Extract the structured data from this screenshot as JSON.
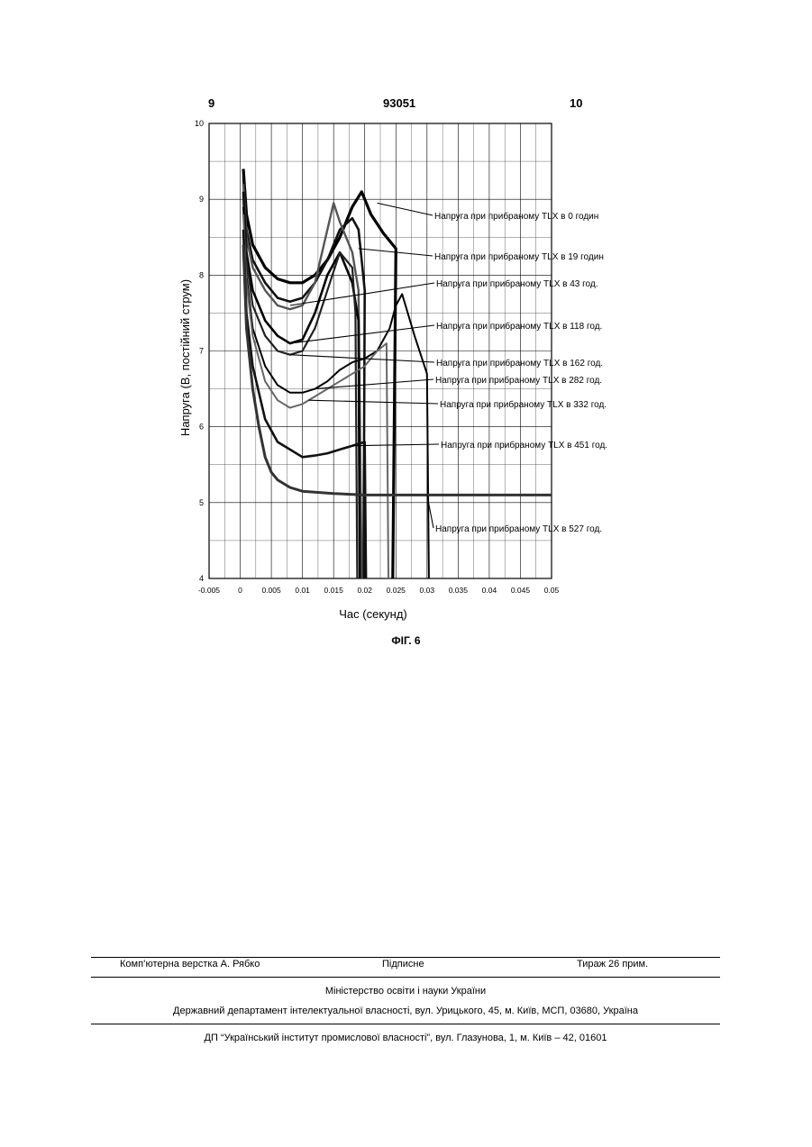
{
  "header": {
    "left_page": "9",
    "patent_number": "93051",
    "right_page": "10"
  },
  "figure_caption": "ФІГ. 6",
  "chart_data": {
    "type": "line",
    "title": "",
    "xlabel": "Час (секунд)",
    "ylabel": "Напруга (В, постійний струм)",
    "xlim": [
      -0.005,
      0.05
    ],
    "ylim": [
      4,
      10
    ],
    "xticks": [
      "-0.005",
      "0",
      "0.005",
      "0.01",
      "0.015",
      "0.02",
      "0.025",
      "0.03",
      "0.035",
      "0.04",
      "0.045",
      "0.05"
    ],
    "yticks": [
      "4",
      "5",
      "6",
      "7",
      "8",
      "9",
      "10"
    ],
    "grid": true,
    "legend": "annotations to the right with leader lines",
    "series": [
      {
        "name": "Напруга при прибраному TLX в 0 годин",
        "x": [
          0.0005,
          0.001,
          0.002,
          0.004,
          0.006,
          0.008,
          0.01,
          0.012,
          0.014,
          0.016,
          0.018,
          0.0195,
          0.021,
          0.023,
          0.025,
          0.0245
        ],
        "y": [
          9.4,
          8.8,
          8.4,
          8.1,
          7.95,
          7.9,
          7.9,
          8.0,
          8.2,
          8.5,
          8.9,
          9.1,
          8.8,
          8.55,
          8.35,
          4.0
        ]
      },
      {
        "name": "Напруга при прибраному TLX в 19 годин",
        "x": [
          0.0005,
          0.001,
          0.002,
          0.004,
          0.006,
          0.008,
          0.01,
          0.012,
          0.014,
          0.016,
          0.018,
          0.019,
          0.0195,
          0.02,
          0.0198
        ],
        "y": [
          9.3,
          8.6,
          8.2,
          7.9,
          7.7,
          7.65,
          7.7,
          7.9,
          8.2,
          8.6,
          8.75,
          8.6,
          8.2,
          7.8,
          4.0
        ]
      },
      {
        "name": "Напруга при прибраному TLX в 43 год.",
        "x": [
          0.0005,
          0.001,
          0.002,
          0.004,
          0.006,
          0.008,
          0.01,
          0.012,
          0.014,
          0.015,
          0.016,
          0.018,
          0.019,
          0.0195
        ],
        "y": [
          9.2,
          8.5,
          8.1,
          7.8,
          7.6,
          7.55,
          7.6,
          7.9,
          8.6,
          8.95,
          8.7,
          8.3,
          7.8,
          4.0
        ]
      },
      {
        "name": "Напруга при прибраному TLX в 118 год.",
        "x": [
          0.0005,
          0.001,
          0.002,
          0.004,
          0.006,
          0.008,
          0.01,
          0.012,
          0.014,
          0.016,
          0.018,
          0.019,
          0.0192
        ],
        "y": [
          9.1,
          8.3,
          7.8,
          7.4,
          7.2,
          7.1,
          7.15,
          7.5,
          8.0,
          8.3,
          7.9,
          7.4,
          4.0
        ]
      },
      {
        "name": "Напруга при прибраному TLX в 162 год.",
        "x": [
          0.0005,
          0.001,
          0.002,
          0.004,
          0.006,
          0.008,
          0.01,
          0.012,
          0.014,
          0.016,
          0.018,
          0.0185,
          0.0188
        ],
        "y": [
          9.0,
          8.2,
          7.6,
          7.2,
          7.0,
          6.95,
          7.0,
          7.3,
          7.8,
          8.3,
          8.1,
          7.5,
          4.0
        ]
      },
      {
        "name": "Напруга при прибраному TLX в 282 год.",
        "x": [
          0.0005,
          0.001,
          0.002,
          0.004,
          0.006,
          0.008,
          0.01,
          0.012,
          0.014,
          0.016,
          0.018,
          0.02,
          0.022,
          0.024,
          0.025,
          0.026,
          0.028,
          0.03,
          0.0303
        ],
        "y": [
          8.9,
          8.0,
          7.3,
          6.8,
          6.55,
          6.45,
          6.45,
          6.5,
          6.6,
          6.75,
          6.85,
          6.9,
          7.0,
          7.3,
          7.6,
          7.75,
          7.2,
          6.7,
          4.0
        ]
      },
      {
        "name": "Напруга при прибраному TLX в 332 год.",
        "x": [
          0.0005,
          0.001,
          0.002,
          0.004,
          0.006,
          0.008,
          0.01,
          0.012,
          0.014,
          0.016,
          0.018,
          0.02,
          0.022,
          0.0235,
          0.0238
        ],
        "y": [
          8.8,
          7.9,
          7.2,
          6.6,
          6.35,
          6.25,
          6.3,
          6.4,
          6.5,
          6.6,
          6.7,
          6.8,
          7.0,
          7.1,
          4.0
        ]
      },
      {
        "name": "Напруга при прибраному TLX в 451 год.",
        "x": [
          0.0005,
          0.001,
          0.002,
          0.004,
          0.006,
          0.008,
          0.01,
          0.012,
          0.014,
          0.016,
          0.018,
          0.02,
          0.0202
        ],
        "y": [
          8.6,
          7.5,
          6.8,
          6.1,
          5.8,
          5.7,
          5.6,
          5.62,
          5.65,
          5.7,
          5.75,
          5.8,
          4.0
        ]
      },
      {
        "name": "Напруга при прибраному TLX в 527 год.",
        "x": [
          0.0005,
          0.001,
          0.002,
          0.003,
          0.004,
          0.005,
          0.006,
          0.008,
          0.01,
          0.015,
          0.02,
          0.025,
          0.03,
          0.035,
          0.04,
          0.045,
          0.05
        ],
        "y": [
          8.4,
          7.3,
          6.5,
          6.0,
          5.6,
          5.4,
          5.3,
          5.2,
          5.15,
          5.12,
          5.1,
          5.1,
          5.1,
          5.1,
          5.1,
          5.1,
          5.1
        ]
      }
    ]
  },
  "footer": {
    "layout_by": "Комп’ютерна верстка А. Рябко",
    "signed": "Підписне",
    "print_run": "Тираж 26 прим.",
    "ministry": "Міністерство освіти і науки України",
    "department": "Державний департамент інтелектуальної власності, вул. Урицького, 45, м. Київ, МСП, 03680, Україна",
    "institute": "ДП “Український інститут промислової власності”, вул. Глазунова, 1, м. Київ – 42, 01601"
  }
}
